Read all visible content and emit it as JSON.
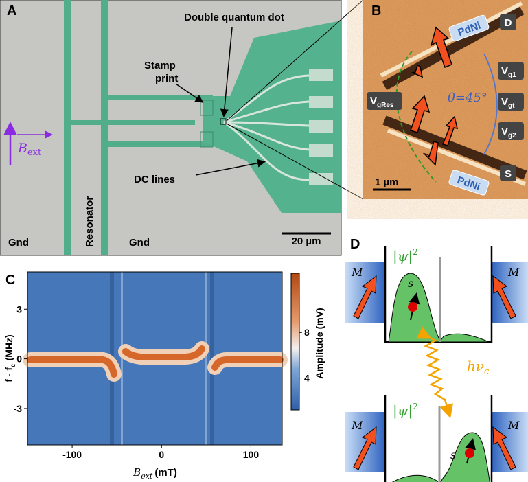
{
  "panel_labels": [
    "A",
    "B",
    "C",
    "D"
  ],
  "panel_a": {
    "double_quantum_dot": "Double quantum dot",
    "stamp_print": [
      "Stamp",
      "print"
    ],
    "dc_lines": "DC lines",
    "resonator": "Resonator",
    "gnd_left": "Gnd",
    "gnd_right": "Gnd",
    "scale_bar": "20 µm",
    "field": {
      "base": "B",
      "sub": "ext"
    }
  },
  "panel_b": {
    "pdni_top": "PdNi",
    "pdni_bottom": "PdNi",
    "drain": "D",
    "source": "S",
    "gates": [
      {
        "base": "V",
        "sub": "g1"
      },
      {
        "base": "V",
        "sub": "gt"
      },
      {
        "base": "V",
        "sub": "g2"
      },
      {
        "base": "V",
        "sub": "gRes"
      }
    ],
    "angle": "θ=45°",
    "scale_bar": "1 µm"
  },
  "chart_data": {
    "type": "heatmap",
    "xlabel": {
      "base": "B",
      "sub": "ext",
      "unit": "(mT)"
    },
    "ylabel": {
      "pre": "f - f",
      "sub": "c",
      "unit": "(MHz)"
    },
    "colorbar_label": "Amplitude (mV)",
    "xlim": [
      -150,
      135
    ],
    "xticks": [
      -100,
      0,
      100
    ],
    "ylim": [
      -5.2,
      5.25
    ],
    "yticks": [
      -3,
      0,
      3
    ],
    "clim": [
      1.2,
      13.2
    ],
    "cticks": [
      4,
      8
    ]
  },
  "panel_d": {
    "top": {
      "psi": {
        "text": "|ψ|",
        "sup": "2"
      },
      "m_left": "M",
      "m_right": "M",
      "spin": "s"
    },
    "bottom": {
      "psi": {
        "text": "|ψ|",
        "sup": "2"
      },
      "m_left": "M",
      "m_right": "M",
      "spin": "s"
    },
    "photon": {
      "base": "hν",
      "sub": "c"
    }
  }
}
